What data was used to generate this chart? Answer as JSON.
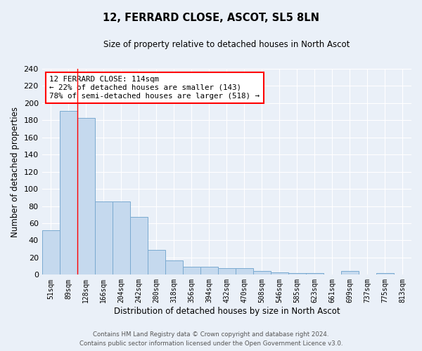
{
  "title": "12, FERRARD CLOSE, ASCOT, SL5 8LN",
  "subtitle": "Size of property relative to detached houses in North Ascot",
  "xlabel": "Distribution of detached houses by size in North Ascot",
  "ylabel": "Number of detached properties",
  "categories": [
    "51sqm",
    "89sqm",
    "128sqm",
    "166sqm",
    "204sqm",
    "242sqm",
    "280sqm",
    "318sqm",
    "356sqm",
    "394sqm",
    "432sqm",
    "470sqm",
    "508sqm",
    "546sqm",
    "585sqm",
    "623sqm",
    "661sqm",
    "699sqm",
    "737sqm",
    "775sqm",
    "813sqm"
  ],
  "values": [
    52,
    191,
    183,
    85,
    85,
    67,
    29,
    17,
    9,
    9,
    8,
    8,
    4,
    3,
    2,
    2,
    0,
    4,
    0,
    2,
    0
  ],
  "bar_color": "#c5d9ee",
  "bar_edge_color": "#7aaad0",
  "red_line_index": 1.5,
  "annotation_line1": "12 FERRARD CLOSE: 114sqm",
  "annotation_line2": "← 22% of detached houses are smaller (143)",
  "annotation_line3": "78% of semi-detached houses are larger (518) →",
  "annotation_box_color": "white",
  "annotation_box_edge": "red",
  "ylim": [
    0,
    240
  ],
  "yticks": [
    0,
    20,
    40,
    60,
    80,
    100,
    120,
    140,
    160,
    180,
    200,
    220,
    240
  ],
  "background_color": "#eaf0f8",
  "grid_color": "#ffffff",
  "footer_line1": "Contains HM Land Registry data © Crown copyright and database right 2024.",
  "footer_line2": "Contains public sector information licensed under the Open Government Licence v3.0."
}
